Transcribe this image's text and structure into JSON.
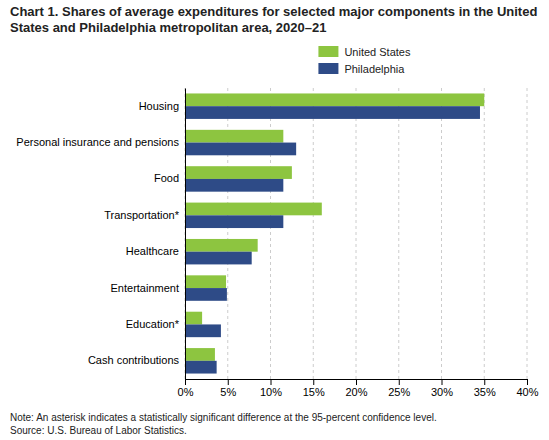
{
  "chart_data": {
    "type": "bar",
    "orientation": "horizontal",
    "title": "Chart 1. Shares of average expenditures for selected major components in the United States and Philadelphia metropolitan area, 2020–21",
    "categories": [
      "Cash contributions",
      "Education*",
      "Entertainment",
      "Healthcare",
      "Transportation*",
      "Food",
      "Personal insurance and pensions",
      "Housing"
    ],
    "series": [
      {
        "name": "United States",
        "color": "#8dc540",
        "values": [
          3.5,
          2.0,
          4.8,
          8.5,
          16.0,
          12.5,
          11.5,
          35.0
        ]
      },
      {
        "name": "Philadelphia",
        "color": "#2e4b87",
        "values": [
          3.7,
          4.2,
          4.9,
          7.8,
          11.5,
          11.5,
          13.0,
          34.5
        ]
      }
    ],
    "xlim": [
      0,
      40
    ],
    "xticks": [
      {
        "value": 0,
        "label": "0%"
      },
      {
        "value": 5,
        "label": "5%"
      },
      {
        "value": 10,
        "label": "10%"
      },
      {
        "value": 15,
        "label": "15%"
      },
      {
        "value": 20,
        "label": "20%"
      },
      {
        "value": 25,
        "label": "25%"
      },
      {
        "value": 30,
        "label": "30%"
      },
      {
        "value": 35,
        "label": "35%"
      },
      {
        "value": 40,
        "label": "40%"
      }
    ],
    "grid": true,
    "legend": "top",
    "annotations": [
      "Note: An asterisk indicates a statistically significant difference at the 95-percent confidence level.",
      "Source: U.S. Bureau of Labor Statistics."
    ]
  }
}
